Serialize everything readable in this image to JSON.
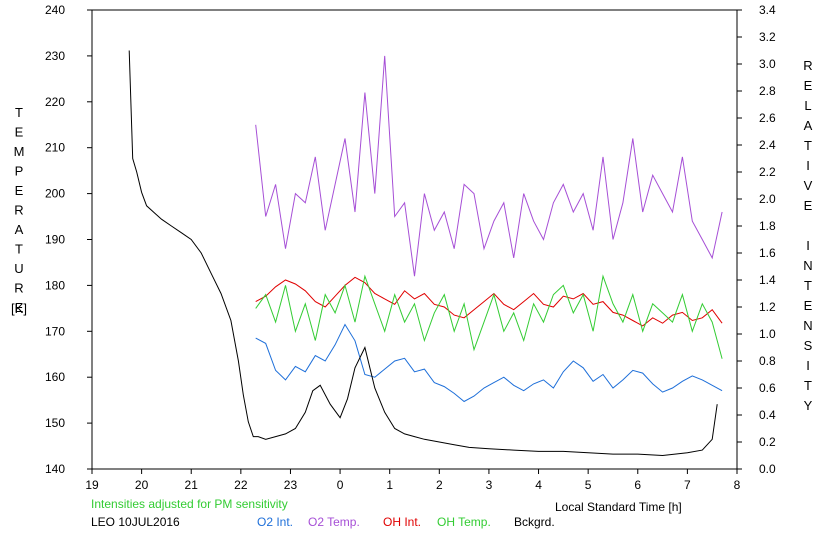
{
  "chart_data": {
    "type": "line",
    "title": "",
    "xlabel": "Local Standard Time [h]",
    "ylabel_left": "TEMPERATURE",
    "ylabel_left_unit": "[K]",
    "ylabel_right": "RELATIVE INTENSITY",
    "note": "Intensities adjusted for PM sensitivity",
    "station_date": "LEO 10JUL2016",
    "xlim": [
      19,
      32
    ],
    "x_tick_values": [
      19,
      20,
      21,
      22,
      23,
      24,
      25,
      26,
      27,
      28,
      29,
      30,
      31,
      32
    ],
    "x_tick_labels": [
      "19",
      "20",
      "21",
      "22",
      "23",
      "0",
      "1",
      "2",
      "3",
      "4",
      "5",
      "6",
      "7",
      "8"
    ],
    "ylim_left": [
      140,
      240
    ],
    "y_left_ticks": [
      140,
      150,
      160,
      170,
      180,
      190,
      200,
      210,
      220,
      230,
      240
    ],
    "ylim_right": [
      0.0,
      3.4
    ],
    "y_right_ticks": [
      "0.0",
      "0.2",
      "0.4",
      "0.6",
      "0.8",
      "1.0",
      "1.2",
      "1.4",
      "1.6",
      "1.8",
      "2.0",
      "2.2",
      "2.4",
      "2.6",
      "2.8",
      "3.0",
      "3.2",
      "3.4"
    ],
    "grid": false,
    "legend_position": "bottom",
    "series": [
      {
        "name": "O2 Int.",
        "axis": "right",
        "color": "#1e6fd9",
        "x": [
          22.3,
          22.5,
          22.7,
          22.9,
          23.1,
          23.3,
          23.5,
          23.7,
          23.9,
          24.1,
          24.3,
          24.5,
          24.7,
          24.9,
          25.1,
          25.3,
          25.5,
          25.7,
          25.9,
          26.1,
          26.3,
          26.5,
          26.7,
          26.9,
          27.1,
          27.3,
          27.5,
          27.7,
          27.9,
          28.1,
          28.3,
          28.5,
          28.7,
          28.9,
          29.1,
          29.3,
          29.5,
          29.7,
          29.9,
          30.1,
          30.3,
          30.5,
          30.7,
          30.9,
          31.1,
          31.3,
          31.5,
          31.7
        ],
        "y": [
          0.97,
          0.93,
          0.73,
          0.66,
          0.76,
          0.72,
          0.84,
          0.8,
          0.92,
          1.07,
          0.95,
          0.7,
          0.68,
          0.74,
          0.8,
          0.82,
          0.72,
          0.74,
          0.64,
          0.61,
          0.56,
          0.5,
          0.54,
          0.6,
          0.64,
          0.68,
          0.62,
          0.58,
          0.63,
          0.66,
          0.6,
          0.72,
          0.8,
          0.75,
          0.65,
          0.7,
          0.6,
          0.66,
          0.73,
          0.71,
          0.63,
          0.57,
          0.6,
          0.65,
          0.69,
          0.66,
          0.62,
          0.58
        ]
      },
      {
        "name": "O2 Temp.",
        "axis": "left",
        "color": "#a64fd6",
        "x": [
          22.3,
          22.5,
          22.7,
          22.9,
          23.1,
          23.3,
          23.5,
          23.7,
          23.9,
          24.1,
          24.3,
          24.5,
          24.7,
          24.9,
          25.1,
          25.3,
          25.5,
          25.7,
          25.9,
          26.1,
          26.3,
          26.5,
          26.7,
          26.9,
          27.1,
          27.3,
          27.5,
          27.7,
          27.9,
          28.1,
          28.3,
          28.5,
          28.7,
          28.9,
          29.1,
          29.3,
          29.5,
          29.7,
          29.9,
          30.1,
          30.3,
          30.5,
          30.7,
          30.9,
          31.1,
          31.3,
          31.5,
          31.7
        ],
        "y": [
          215,
          195,
          202,
          188,
          200,
          198,
          208,
          192,
          202,
          212,
          196,
          222,
          200,
          230,
          195,
          198,
          182,
          200,
          192,
          196,
          188,
          202,
          200,
          188,
          194,
          198,
          186,
          200,
          194,
          190,
          198,
          202,
          196,
          200,
          192,
          208,
          190,
          198,
          212,
          196,
          204,
          200,
          196,
          208,
          194,
          190,
          186,
          196
        ]
      },
      {
        "name": "OH Int.",
        "axis": "right",
        "color": "#e00000",
        "x": [
          22.3,
          22.5,
          22.7,
          22.9,
          23.1,
          23.3,
          23.5,
          23.7,
          23.9,
          24.1,
          24.3,
          24.5,
          24.7,
          24.9,
          25.1,
          25.3,
          25.5,
          25.7,
          25.9,
          26.1,
          26.3,
          26.5,
          26.7,
          26.9,
          27.1,
          27.3,
          27.5,
          27.7,
          27.9,
          28.1,
          28.3,
          28.5,
          28.7,
          28.9,
          29.1,
          29.3,
          29.5,
          29.7,
          29.9,
          30.1,
          30.3,
          30.5,
          30.7,
          30.9,
          31.1,
          31.3,
          31.5,
          31.7
        ],
        "y": [
          1.24,
          1.28,
          1.35,
          1.4,
          1.37,
          1.32,
          1.24,
          1.2,
          1.28,
          1.36,
          1.42,
          1.38,
          1.3,
          1.26,
          1.22,
          1.32,
          1.26,
          1.3,
          1.22,
          1.2,
          1.14,
          1.12,
          1.18,
          1.24,
          1.3,
          1.22,
          1.18,
          1.24,
          1.3,
          1.22,
          1.2,
          1.28,
          1.26,
          1.3,
          1.22,
          1.24,
          1.16,
          1.14,
          1.1,
          1.06,
          1.12,
          1.08,
          1.14,
          1.16,
          1.1,
          1.12,
          1.18,
          1.08
        ]
      },
      {
        "name": "OH Temp.",
        "axis": "left",
        "color": "#33cc33",
        "x": [
          22.3,
          22.5,
          22.7,
          22.9,
          23.1,
          23.3,
          23.5,
          23.7,
          23.9,
          24.1,
          24.3,
          24.5,
          24.7,
          24.9,
          25.1,
          25.3,
          25.5,
          25.7,
          25.9,
          26.1,
          26.3,
          26.5,
          26.7,
          26.9,
          27.1,
          27.3,
          27.5,
          27.7,
          27.9,
          28.1,
          28.3,
          28.5,
          28.7,
          28.9,
          29.1,
          29.3,
          29.5,
          29.7,
          29.9,
          30.1,
          30.3,
          30.5,
          30.7,
          30.9,
          31.1,
          31.3,
          31.5,
          31.7
        ],
        "y": [
          175,
          178,
          172,
          180,
          170,
          176,
          168,
          178,
          174,
          180,
          172,
          182,
          176,
          170,
          178,
          172,
          176,
          168,
          174,
          178,
          170,
          176,
          166,
          172,
          178,
          170,
          174,
          168,
          176,
          172,
          178,
          180,
          174,
          178,
          170,
          182,
          176,
          172,
          178,
          170,
          176,
          174,
          172,
          178,
          170,
          176,
          172,
          164
        ]
      },
      {
        "name": "Bckgrd.",
        "axis": "right",
        "color": "#000000",
        "x": [
          19.75,
          19.82,
          19.9,
          20.0,
          20.1,
          20.25,
          20.4,
          20.6,
          20.8,
          21.0,
          21.2,
          21.4,
          21.6,
          21.8,
          21.95,
          22.05,
          22.15,
          22.25,
          22.35,
          22.5,
          22.7,
          22.9,
          23.1,
          23.3,
          23.45,
          23.6,
          23.8,
          24.0,
          24.15,
          24.3,
          24.5,
          24.7,
          24.9,
          25.1,
          25.3,
          25.5,
          25.7,
          26.0,
          26.3,
          26.6,
          27.0,
          27.5,
          28.0,
          28.5,
          29.0,
          29.5,
          30.0,
          30.5,
          31.0,
          31.3,
          31.5,
          31.6
        ],
        "y": [
          3.1,
          2.3,
          2.2,
          2.05,
          1.95,
          1.9,
          1.85,
          1.8,
          1.75,
          1.7,
          1.6,
          1.45,
          1.3,
          1.1,
          0.8,
          0.55,
          0.35,
          0.24,
          0.24,
          0.22,
          0.24,
          0.26,
          0.3,
          0.42,
          0.58,
          0.62,
          0.48,
          0.38,
          0.52,
          0.75,
          0.9,
          0.6,
          0.42,
          0.3,
          0.26,
          0.24,
          0.22,
          0.2,
          0.18,
          0.16,
          0.15,
          0.14,
          0.13,
          0.13,
          0.12,
          0.11,
          0.11,
          0.1,
          0.12,
          0.14,
          0.22,
          0.48
        ]
      }
    ]
  }
}
